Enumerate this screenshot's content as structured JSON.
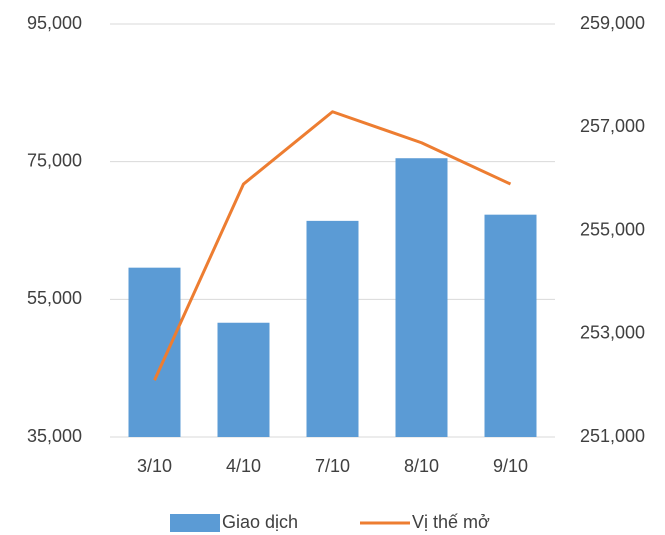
{
  "chart_data": {
    "type": "bar",
    "categories": [
      "3/10",
      "4/10",
      "7/10",
      "8/10",
      "9/10"
    ],
    "series": [
      {
        "name": "Giao dịch",
        "color": "#5b9bd5",
        "type": "bar",
        "values": [
          59600,
          51600,
          66400,
          75500,
          67300
        ]
      },
      {
        "name": "Vị thế mở",
        "color": "#ed7d31",
        "type": "line",
        "axis": "y2",
        "values": [
          252100,
          255900,
          257300,
          256700,
          255900
        ]
      }
    ],
    "ylim": [
      35000,
      95000
    ],
    "yticks": [
      {
        "value": 35000,
        "label": "35,000"
      },
      {
        "value": 55000,
        "label": "55,000"
      },
      {
        "value": 75000,
        "label": "75,000"
      },
      {
        "value": 95000,
        "label": "95,000"
      }
    ],
    "y2lim": [
      251000,
      259000
    ],
    "y2ticks": [
      {
        "value": 251000,
        "label": "251,000"
      },
      {
        "value": 253000,
        "label": "253,000"
      },
      {
        "value": 255000,
        "label": "255,000"
      },
      {
        "value": 257000,
        "label": "257,000"
      },
      {
        "value": 259000,
        "label": "259,000"
      }
    ],
    "grid": true,
    "legend": "bottom"
  }
}
